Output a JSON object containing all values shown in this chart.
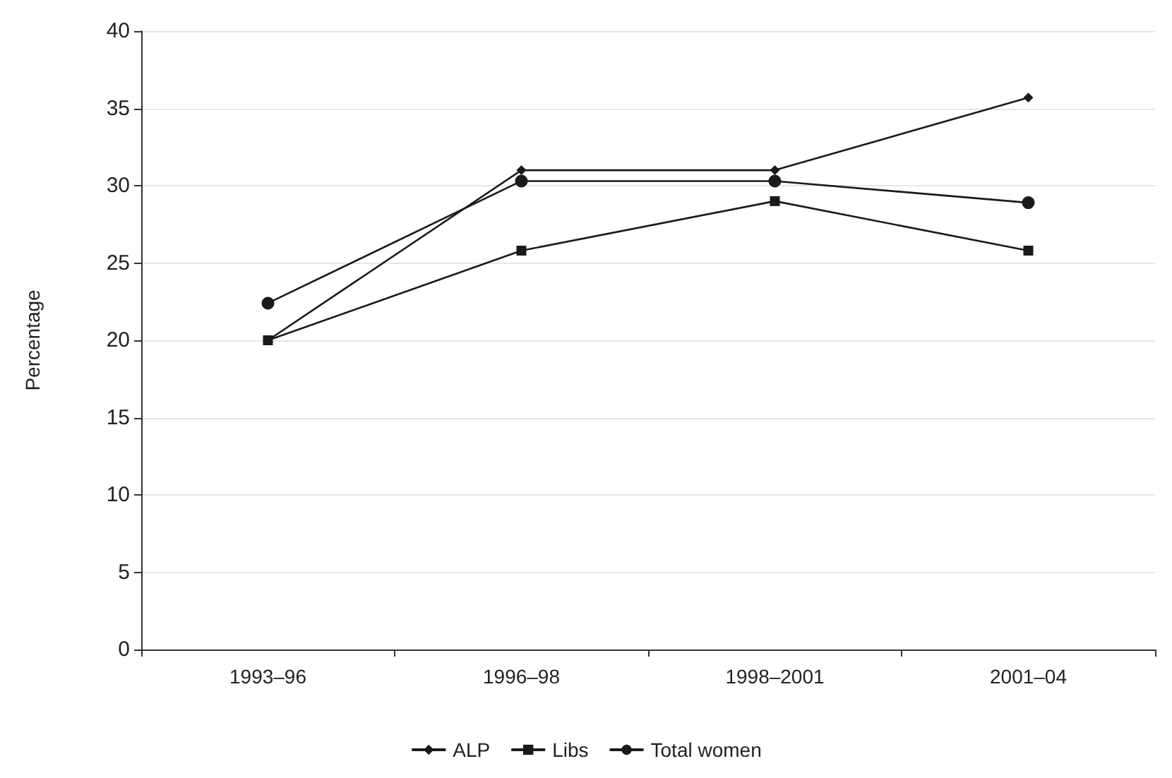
{
  "chart_data": {
    "type": "line",
    "ylabel": "Percentage",
    "categories": [
      "1993–96",
      "1996–98",
      "1998–2001",
      "2001–04"
    ],
    "series": [
      {
        "name": "ALP",
        "color": "#1a1a1a",
        "marker": "diamond",
        "values": [
          20,
          31,
          31,
          35.7
        ]
      },
      {
        "name": "Libs",
        "color": "#1a1a1a",
        "marker": "square",
        "values": [
          20,
          25.8,
          29,
          25.8
        ]
      },
      {
        "name": "Total women",
        "color": "#1a1a1a",
        "marker": "circle",
        "values": [
          22.4,
          30.3,
          30.3,
          28.9
        ]
      }
    ],
    "ylim": [
      0,
      40
    ],
    "yticks": [
      0,
      5,
      10,
      15,
      20,
      25,
      30,
      35,
      40
    ],
    "grid": "y",
    "legend": "bottom",
    "line_style": "solid"
  }
}
